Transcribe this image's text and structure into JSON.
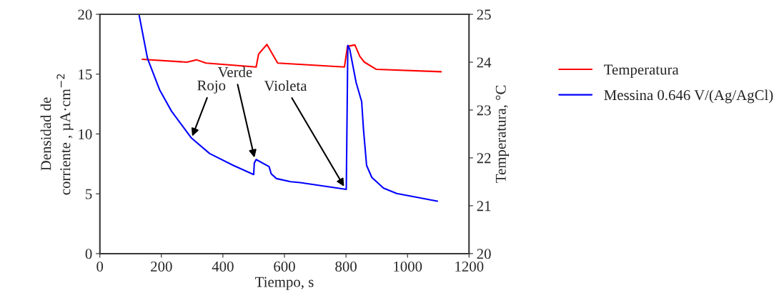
{
  "chart_data": {
    "type": "line",
    "xlabel": "Tiempo, s",
    "ylabel": "Densidad de\ncorriente , µA·cm$^{−2}$",
    "y2label": "Temperatura, °C",
    "xlim": [
      0,
      1200
    ],
    "xticks": [
      0,
      200,
      400,
      600,
      800,
      1000,
      1200
    ],
    "ylim": [
      0,
      20
    ],
    "yticks": [
      0,
      5,
      10,
      15,
      20
    ],
    "y2lim": [
      20,
      25
    ],
    "y2ticks": [
      20,
      21,
      22,
      23,
      24,
      25
    ],
    "grid": false,
    "legend": "right",
    "marker": "none",
    "line_style": "solid",
    "series": [
      {
        "name": "Temperatura",
        "color": "#ff0000",
        "axis": "y2",
        "x": [
          138,
          283,
          314,
          345,
          508,
          516,
          543,
          578,
          795,
          805,
          829,
          845,
          860,
          899,
          1109
        ],
        "values": [
          24.06,
          24.0,
          24.05,
          23.98,
          23.9,
          24.17,
          24.37,
          23.98,
          23.9,
          24.33,
          24.36,
          24.12,
          24.0,
          23.85,
          23.8
        ]
      },
      {
        "name": "Messina 0.646 V/(Ag/AgCl)",
        "color": "#0000ff",
        "x": [
          128,
          155,
          194,
          233,
          298,
          357,
          434,
          500,
          502,
          508,
          550,
          557,
          574,
          620,
          651,
          801,
          806,
          812,
          833,
          851,
          857,
          867,
          884,
          922,
          965,
          1097
        ],
        "values": [
          19.9,
          16.3,
          13.7,
          11.9,
          9.65,
          8.36,
          7.37,
          6.61,
          7.56,
          7.86,
          7.27,
          6.67,
          6.27,
          6.01,
          5.93,
          5.37,
          17.4,
          17.1,
          14.3,
          12.7,
          10.35,
          7.37,
          6.37,
          5.47,
          5.02,
          4.38
        ]
      }
    ],
    "annotations": [
      {
        "text": "Rojo",
        "x": 298,
        "y": 9.65
      },
      {
        "text": "Verde",
        "x": 504,
        "y": 7.86
      },
      {
        "text": "Violeta",
        "x": 797,
        "y": 5.47
      }
    ]
  }
}
